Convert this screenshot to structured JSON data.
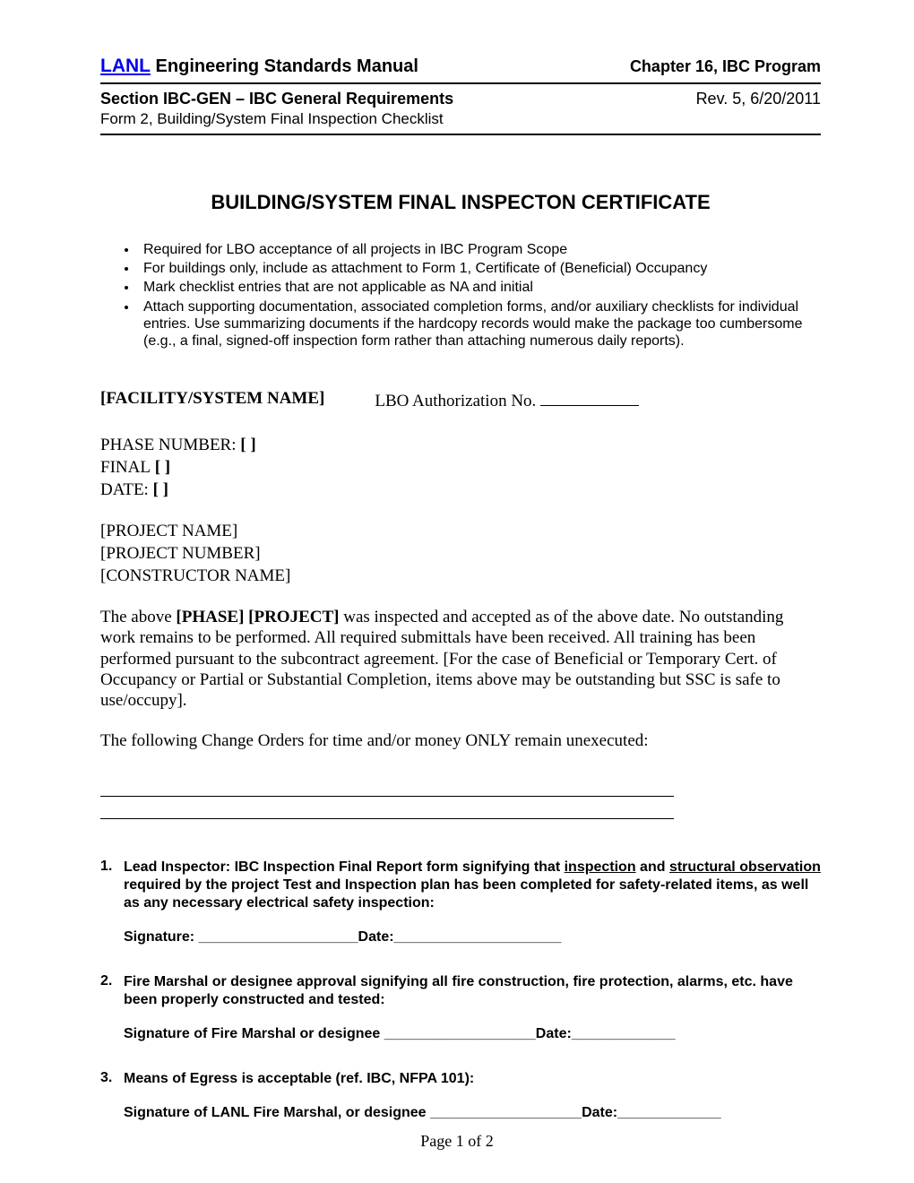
{
  "header": {
    "lanl": "LANL",
    "manual_title": " Engineering Standards Manual",
    "chapter": "Chapter 16, IBC Program",
    "section": "Section IBC-GEN – IBC General Requirements",
    "revision": "Rev. 5, 6/20/2011",
    "form_line": "Form 2, Building/System Final Inspection Checklist"
  },
  "main_title": "BUILDING/SYSTEM FINAL INSPECTON CERTIFICATE",
  "bullets": [
    "Required for LBO acceptance of all projects in IBC Program Scope",
    "For buildings only, include as attachment to Form 1, Certificate of (Beneficial) Occupancy",
    "Mark checklist entries that are not applicable as NA and initial",
    "Attach supporting documentation, associated completion forms, and/or auxiliary checklists for individual entries.  Use summarizing documents if the hardcopy records would make the package too cumbersome (e.g., a final, signed-off inspection form rather than attaching numerous daily reports)."
  ],
  "facility": {
    "label": "[FACILITY/SYSTEM NAME]",
    "lbo_label": "LBO Authorization No.",
    "phase_label": "PHASE NUMBER:",
    "phase_bracket": " [    ]",
    "final_label": "FINAL",
    "final_bracket": " [    ]",
    "date_label": "DATE:",
    "date_bracket": " [    ]",
    "project_name": "[PROJECT NAME]",
    "project_number": "[PROJECT NUMBER]",
    "constructor": "[CONSTRUCTOR NAME]"
  },
  "paragraph1_pre": "The above ",
  "paragraph1_bold": "[PHASE] [PROJECT]",
  "paragraph1_post": " was inspected and accepted as of the above date. No outstanding work remains to be performed. All required submittals have been received. All training has been performed pursuant to the subcontract agreement. [For the case of Beneficial or Temporary Cert. of Occupancy or Partial or Substantial Completion, items above may be outstanding but SSC is safe to use/occupy].",
  "paragraph2": "The following Change Orders for time and/or money ONLY remain unexecuted:",
  "items": {
    "item1_pre": "Lead Inspector:  IBC Inspection Final Report form signifying that ",
    "item1_u1": "inspection",
    "item1_mid": " and ",
    "item1_u2": "structural observation",
    "item1_post": " required by the project Test and Inspection plan has been completed for safety-related items, as well as any necessary electrical safety inspection:",
    "item1_sig": "Signature: ____________________Date:_____________________",
    "item2_text": "Fire Marshal or designee approval signifying all fire construction, fire protection, alarms, etc. have been properly constructed and tested:",
    "item2_sig": "Signature of Fire Marshal or designee ___________________Date:_____________",
    "item3_text": "Means of Egress is acceptable (ref. IBC, NFPA 101):",
    "item3_sig": "Signature of LANL Fire Marshal, or designee ___________________Date:_____________"
  },
  "footer": "Page 1 of 2"
}
